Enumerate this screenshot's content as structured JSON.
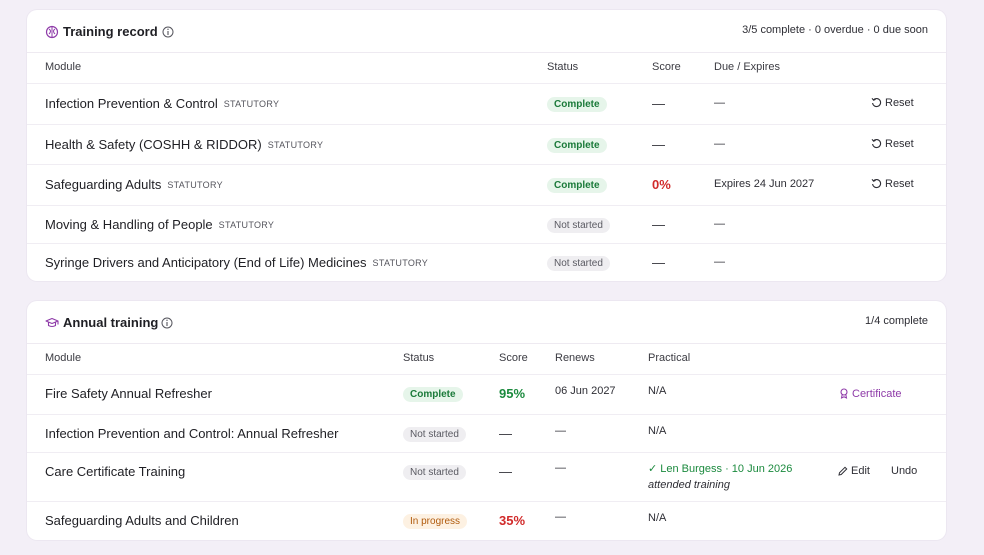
{
  "training_record": {
    "title": "Training record",
    "summary": "3/5 complete · 0 overdue · 0 due soon",
    "columns": {
      "module": "Module",
      "status": "Status",
      "score": "Score",
      "due": "Due / Expires"
    },
    "rows": [
      {
        "module": "Infection Prevention & Control",
        "tag": "STATUTORY",
        "status": "Complete",
        "score": "—",
        "due": "—",
        "action": "Reset"
      },
      {
        "module": "Health & Safety (COSHH & RIDDOR)",
        "tag": "STATUTORY",
        "status": "Complete",
        "score": "—",
        "due": "—",
        "action": "Reset"
      },
      {
        "module": "Safeguarding Adults",
        "tag": "STATUTORY",
        "status": "Complete",
        "score": "0%",
        "due": "Expires 24 Jun 2027",
        "action": "Reset"
      },
      {
        "module": "Moving & Handling of People",
        "tag": "STATUTORY",
        "status": "Not started",
        "score": "—",
        "due": "—"
      },
      {
        "module": "Syringe Drivers and Anticipatory (End of Life) Medicines",
        "tag": "STATUTORY",
        "status": "Not started",
        "score": "—",
        "due": "—"
      }
    ]
  },
  "annual_training": {
    "title": "Annual training",
    "summary": "1/4 complete",
    "columns": {
      "module": "Module",
      "status": "Status",
      "score": "Score",
      "renews": "Renews",
      "practical": "Practical"
    },
    "rows": [
      {
        "module": "Fire Safety Annual Refresher",
        "status": "Complete",
        "score": "95%",
        "renews": "06 Jun 2027",
        "practical": "N/A",
        "action": "Certificate"
      },
      {
        "module": "Infection Prevention and Control: Annual Refresher",
        "status": "Not started",
        "score": "—",
        "renews": "—",
        "practical": "N/A"
      },
      {
        "module": "Care Certificate Training",
        "status": "Not started",
        "score": "—",
        "renews": "—",
        "practical": "✓ Len Burgess · 10 Jun 2026",
        "practical_note": "attended training",
        "action_edit": "Edit",
        "action_undo": "Undo"
      },
      {
        "module": "Safeguarding Adults and Children",
        "status": "In progress",
        "score": "35%",
        "renews": "—",
        "practical": "N/A"
      }
    ]
  },
  "colors": {
    "accent": "#8e3aa8",
    "complete": "#1b7a3a",
    "danger": "#d12a2a",
    "warning": "#b05a0c",
    "background": "#f3eff7"
  }
}
